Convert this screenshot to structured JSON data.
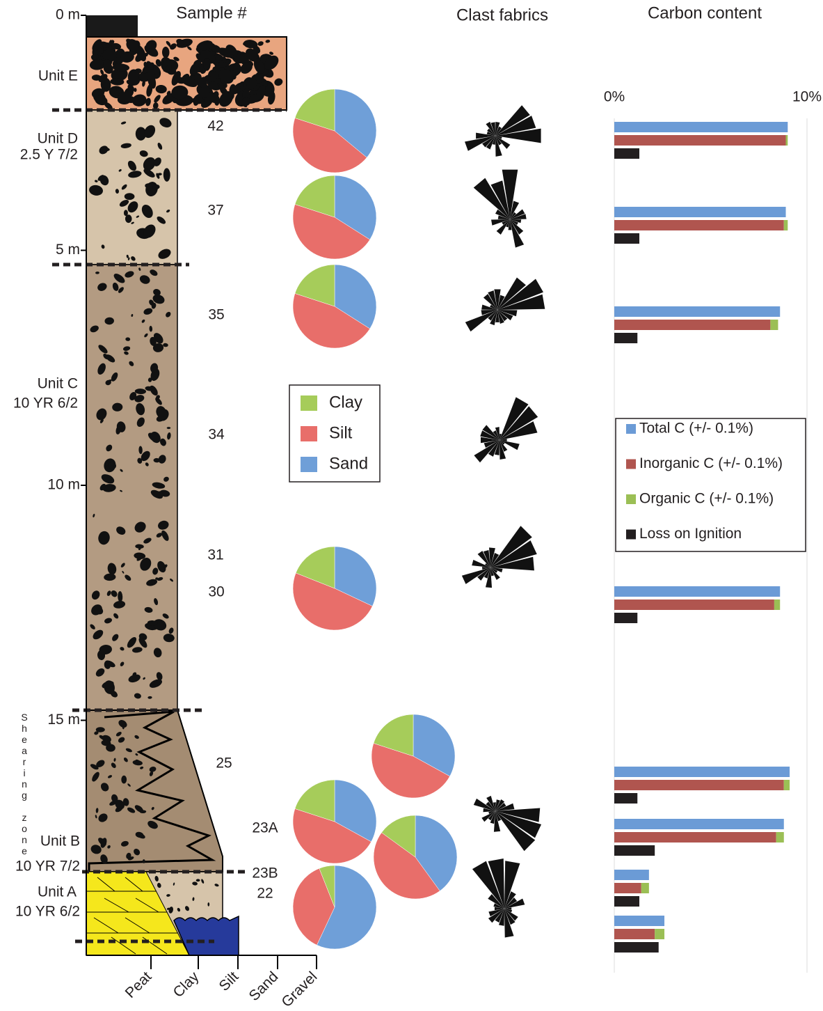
{
  "headers": {
    "sample": "Sample #",
    "fabrics": "Clast fabrics",
    "carbon": "Carbon content"
  },
  "column": {
    "depth_ticks": [
      {
        "value": 0,
        "label": "0 m"
      },
      {
        "value": 5,
        "label": "5 m"
      },
      {
        "value": 10,
        "label": "10 m"
      },
      {
        "value": 15,
        "label": "15 m"
      }
    ],
    "units": [
      {
        "name": "Unit E"
      },
      {
        "name": "Unit D",
        "color": "2.5 Y 7/2"
      },
      {
        "name": "Unit C",
        "color": "10 YR 6/2"
      },
      {
        "name": "Unit B",
        "color": "10 YR 7/2"
      },
      {
        "name": "Unit A",
        "color": "10 YR 6/2"
      }
    ],
    "shear_zone": "Shearing zone",
    "grain_sizes": [
      "Peat",
      "Clay",
      "Silt",
      "Sand",
      "Gravel"
    ]
  },
  "samples": [
    "42",
    "37",
    "35",
    "34",
    "31",
    "30",
    "25",
    "23A",
    "23B",
    "22"
  ],
  "chart_data": [
    {
      "type": "pie",
      "categories": [
        "Clay",
        "Silt",
        "Sand"
      ],
      "colors": [
        "#a6cc5a",
        "#e86e6a",
        "#6f9fd8"
      ],
      "pies": [
        [
          20,
          44,
          36
        ],
        [
          20,
          46,
          34
        ],
        [
          20,
          46,
          34
        ],
        [
          19,
          49,
          32
        ],
        [
          20,
          47,
          33
        ],
        [
          20,
          47,
          33
        ],
        [
          15,
          45,
          40
        ],
        [
          6,
          37,
          57
        ]
      ]
    },
    {
      "type": "bar",
      "orientation": "horizontal",
      "xlim": [
        0,
        10
      ],
      "xticks": [
        {
          "value": 0,
          "label": "0%"
        },
        {
          "value": 10,
          "label": "10%"
        }
      ],
      "grid": true,
      "series": [
        {
          "name": "Total C (+/- 0.1%)",
          "color": "#6b9bd6",
          "values": [
            9.0,
            8.9,
            8.6,
            8.6,
            9.1,
            8.8,
            1.8,
            2.6
          ]
        },
        {
          "name": "Inorganic C (+/- 0.1%)",
          "color": "#b0554f",
          "values": [
            8.9,
            8.8,
            8.1,
            8.3,
            8.8,
            8.4,
            1.4,
            2.1
          ]
        },
        {
          "name": "Organic C (+/- 0.1%)",
          "color": "#9bbf55",
          "values": [
            0.1,
            0.2,
            0.4,
            0.3,
            0.3,
            0.4,
            0.4,
            0.5
          ],
          "stack_on": 1
        },
        {
          "name": "Loss on Ignition",
          "color": "#231f20",
          "values": [
            1.3,
            1.3,
            1.2,
            1.2,
            1.2,
            2.1,
            1.3,
            2.3
          ]
        }
      ]
    }
  ]
}
